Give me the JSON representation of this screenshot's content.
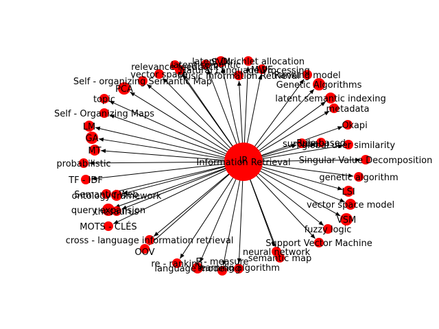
{
  "colors": {
    "node": "#ff0000",
    "edge": "#000000",
    "label": "#000000",
    "background": "#ffffff"
  },
  "hub": {
    "label": "IR",
    "label2": "Information Retrieval"
  },
  "nodes": [
    {
      "label": "latent Dirichlet allocation"
    },
    {
      "label": "SVM"
    },
    {
      "label": "latent semantic"
    },
    {
      "label": "MWE"
    },
    {
      "label": "relevance feedback"
    },
    {
      "label": "Natural Language Processing"
    },
    {
      "label": "Ranking model"
    },
    {
      "label": "vector space"
    },
    {
      "label": "Music Information Retrieval"
    },
    {
      "label": "Self - organizing Semantic Map"
    },
    {
      "label": "Genetic Algorithms"
    },
    {
      "label": "PCA"
    },
    {
      "label": "latent semantic indexing"
    },
    {
      "label": "topic"
    },
    {
      "label": "metadata"
    },
    {
      "label": "Self - Organizing Maps"
    },
    {
      "label": "Okapi"
    },
    {
      "label": "LM"
    },
    {
      "label": "GA"
    },
    {
      "label": "surprisal"
    },
    {
      "label": "Rule based"
    },
    {
      "label": "global user similarity"
    },
    {
      "label": "MT"
    },
    {
      "label": "probabilistic"
    },
    {
      "label": "Singular Value Decomposition"
    },
    {
      "label": "TF - IDF"
    },
    {
      "label": "genetic algorithm"
    },
    {
      "label": "Semantic Web"
    },
    {
      "label": "ontology framework"
    },
    {
      "label": "LSI"
    },
    {
      "label": "query expansion"
    },
    {
      "label": "thesaurus"
    },
    {
      "label": "vector space model"
    },
    {
      "label": "VSM"
    },
    {
      "label": "MOTS - CLÉS"
    },
    {
      "label": "fuzzy logic"
    },
    {
      "label": "cross - language information retrieval"
    },
    {
      "label": "Support Vector Machine"
    },
    {
      "label": "OOV"
    },
    {
      "label": "neural network"
    },
    {
      "label": "semantic map"
    },
    {
      "label": "re - ranking"
    },
    {
      "label": "F - measure"
    },
    {
      "label": "language modeling"
    },
    {
      "label": "learning algorithm"
    }
  ]
}
